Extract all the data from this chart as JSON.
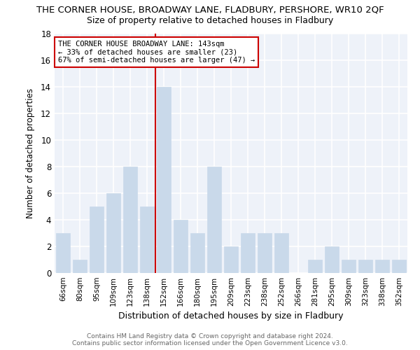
{
  "title": "THE CORNER HOUSE, BROADWAY LANE, FLADBURY, PERSHORE, WR10 2QF",
  "subtitle": "Size of property relative to detached houses in Fladbury",
  "xlabel": "Distribution of detached houses by size in Fladbury",
  "ylabel": "Number of detached properties",
  "bar_labels": [
    "66sqm",
    "80sqm",
    "95sqm",
    "109sqm",
    "123sqm",
    "138sqm",
    "152sqm",
    "166sqm",
    "180sqm",
    "195sqm",
    "209sqm",
    "223sqm",
    "238sqm",
    "252sqm",
    "266sqm",
    "281sqm",
    "295sqm",
    "309sqm",
    "323sqm",
    "338sqm",
    "352sqm"
  ],
  "bar_values": [
    3,
    1,
    5,
    6,
    8,
    5,
    14,
    4,
    3,
    8,
    2,
    3,
    3,
    3,
    0,
    1,
    2,
    1,
    1,
    1,
    1
  ],
  "bar_color": "#c9d9ea",
  "bar_edgecolor": "#c9d9ea",
  "reference_line_x": 5.5,
  "annotation_text": "THE CORNER HOUSE BROADWAY LANE: 143sqm\n← 33% of detached houses are smaller (23)\n67% of semi-detached houses are larger (47) →",
  "ylim": [
    0,
    18
  ],
  "yticks": [
    0,
    2,
    4,
    6,
    8,
    10,
    12,
    14,
    16,
    18
  ],
  "footer_line1": "Contains HM Land Registry data © Crown copyright and database right 2024.",
  "footer_line2": "Contains public sector information licensed under the Open Government Licence v3.0.",
  "bg_color": "#eef2f9",
  "grid_color": "#ffffff",
  "annotation_box_edgecolor": "#cc0000",
  "vline_color": "#cc0000",
  "fig_bg": "#ffffff"
}
